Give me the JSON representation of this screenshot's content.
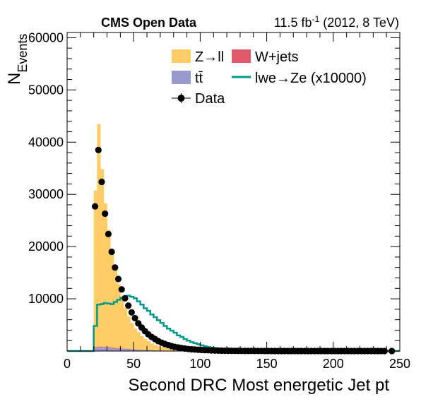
{
  "header": {
    "left": "CMS Open Data",
    "lumi_prefix": "11.5 fb",
    "lumi_exp": "-1",
    "lumi_suffix": " (2012, 8 TeV)"
  },
  "colors": {
    "zll": "#ffcc66",
    "wjets": "#de5a6a",
    "ttbar": "#9999cc",
    "signal": "#009988",
    "data": "#000000"
  },
  "chart_data": {
    "type": "bar",
    "stacked": true,
    "xlabel": "Second DRC Most energetic Jet pt",
    "ylabel_main": "N",
    "ylabel_sub": "Events",
    "xlim": [
      0,
      250
    ],
    "ylim": [
      0,
      61000
    ],
    "x_ticks": [
      0,
      50,
      100,
      150,
      200,
      250
    ],
    "y_ticks": [
      10000,
      20000,
      30000,
      40000,
      50000,
      60000
    ],
    "x_tick_labels": [
      "0",
      "50",
      "100",
      "150",
      "200",
      "250"
    ],
    "y_tick_labels": [
      "10000",
      "20000",
      "30000",
      "40000",
      "50000",
      "60000"
    ],
    "bin_width": 2.5,
    "bin_edges": [
      20,
      22.5,
      25,
      27.5,
      30,
      32.5,
      35,
      37.5,
      40,
      42.5,
      45,
      47.5,
      50,
      52.5,
      55,
      57.5,
      60,
      62.5,
      65,
      67.5,
      70,
      72.5,
      75,
      77.5,
      80,
      82.5,
      85,
      87.5,
      90,
      92.5,
      95,
      97.5,
      100,
      102.5,
      105,
      107.5,
      110,
      112.5,
      115,
      117.5,
      120,
      122.5,
      125,
      127.5,
      130,
      132.5,
      135,
      137.5,
      140,
      142.5,
      145,
      147.5,
      150
    ],
    "legend": {
      "zll": "Z→ll",
      "wjets": "W+jets",
      "ttbar": "tt̄",
      "signal": "lwe→Ze (x10000)",
      "data": "Data"
    },
    "series": [
      {
        "name": "tt̄",
        "key": "ttbar",
        "values": [
          600,
          700,
          700,
          650,
          600,
          550,
          500,
          450,
          420,
          380,
          340,
          300,
          270,
          240,
          210,
          180,
          160,
          140,
          120,
          100,
          90,
          80,
          70,
          60,
          50,
          40,
          35,
          30,
          25,
          20,
          15,
          12,
          10,
          8,
          6,
          5,
          4,
          3,
          3,
          2,
          2,
          1,
          1,
          1,
          1,
          0,
          0,
          0,
          0,
          0,
          0,
          0
        ]
      },
      {
        "name": "W+jets",
        "key": "wjets",
        "values": [
          150,
          150,
          150,
          140,
          130,
          120,
          110,
          100,
          90,
          80,
          70,
          60,
          50,
          45,
          40,
          35,
          30,
          25,
          20,
          18,
          15,
          12,
          10,
          8,
          6,
          5,
          4,
          3,
          2,
          2,
          1,
          1,
          1,
          1,
          0,
          0,
          0,
          0,
          0,
          0,
          0,
          0,
          0,
          0,
          0,
          0,
          0,
          0,
          0,
          0,
          0,
          0
        ]
      },
      {
        "name": "Z→ll",
        "key": "zll",
        "values": [
          30000,
          42600,
          34000,
          27500,
          22500,
          18700,
          15200,
          12300,
          9800,
          7800,
          6200,
          5000,
          4000,
          3300,
          2600,
          2100,
          1700,
          1300,
          1050,
          850,
          700,
          560,
          450,
          360,
          290,
          230,
          180,
          140,
          110,
          90,
          70,
          55,
          45,
          35,
          28,
          22,
          18,
          14,
          11,
          9,
          7,
          5,
          4,
          3,
          3,
          2,
          2,
          1,
          1,
          1,
          1,
          0
        ]
      }
    ],
    "signal": {
      "name": "lwe→Ze (x10000)",
      "values": [
        4800,
        8900,
        9000,
        9200,
        9100,
        9000,
        9400,
        9800,
        10200,
        10400,
        10600,
        10400,
        10100,
        9500,
        8900,
        8200,
        7700,
        7000,
        6500,
        5900,
        5400,
        4800,
        4300,
        3900,
        3500,
        3000,
        2700,
        2300,
        2000,
        1700,
        1500,
        1300,
        1100,
        900,
        800,
        650,
        550,
        450,
        400,
        300,
        250,
        200,
        170,
        140,
        110,
        90,
        70,
        60,
        50,
        40,
        30,
        20
      ]
    },
    "data_points": {
      "name": "Data",
      "x": [
        21,
        23.5,
        26,
        28.5,
        31,
        33.5,
        36,
        38.5,
        41,
        43.5,
        46,
        48.5,
        51,
        53.5,
        56,
        58.5,
        61,
        63.5,
        66,
        68.5,
        71,
        73.5,
        76,
        78.5,
        81,
        83.5,
        86,
        88.5,
        91,
        93.5,
        96,
        98.5,
        101,
        103.5,
        106,
        108.5,
        111,
        113.5,
        116,
        118.5,
        121,
        123.5,
        126,
        128.5,
        131,
        133.5,
        136,
        138.5,
        141,
        143.5,
        146,
        148.5,
        151,
        153.5,
        156,
        158.5,
        161,
        163.5,
        166,
        168.5,
        171,
        173.5,
        176,
        178.5,
        181,
        183.5,
        186,
        188.5,
        191,
        193.5,
        196,
        198.5,
        201,
        203.5,
        206,
        208.5,
        211,
        213.5,
        216,
        218.5,
        221,
        223.5,
        226,
        228.5,
        231,
        233.5,
        236,
        238.5,
        244
      ],
      "y": [
        27700,
        38500,
        32400,
        26300,
        22400,
        19000,
        16000,
        13800,
        11800,
        10100,
        8700,
        7400,
        6300,
        5300,
        4500,
        3800,
        3200,
        2700,
        2300,
        1900,
        1600,
        1350,
        1150,
        950,
        800,
        680,
        570,
        480,
        400,
        340,
        290,
        240,
        200,
        170,
        145,
        120,
        100,
        85,
        72,
        60,
        50,
        42,
        36,
        30,
        25,
        21,
        18,
        15,
        13,
        11,
        9,
        8,
        7,
        6,
        5,
        4,
        4,
        3,
        3,
        2,
        2,
        2,
        2,
        1,
        1,
        1,
        1,
        1,
        1,
        1,
        1,
        1,
        1,
        1,
        1,
        1,
        1,
        1,
        1,
        1,
        1,
        1,
        1,
        1,
        1,
        1,
        1,
        1,
        1
      ]
    }
  }
}
